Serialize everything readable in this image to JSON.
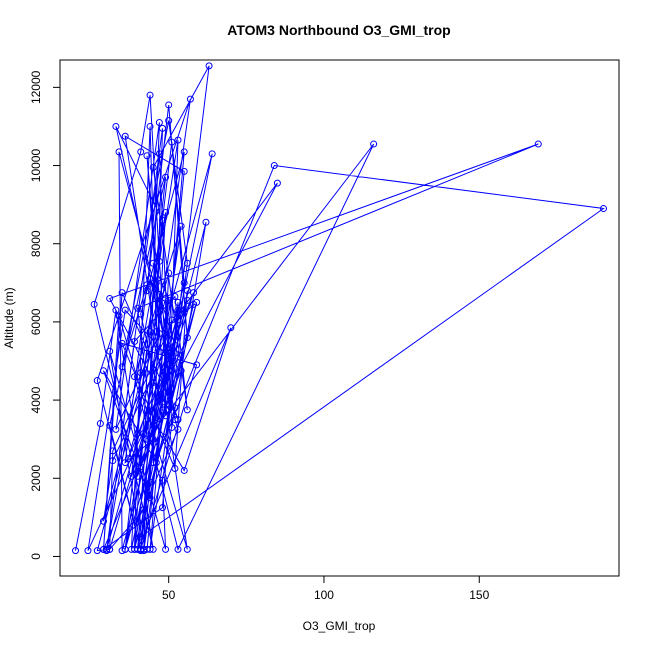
{
  "chart_data": {
    "type": "line",
    "title": "ATOM3 Northbound O3_GMI_trop",
    "xlabel": "O3_GMI_trop",
    "ylabel": "Altitude (m)",
    "xlim": [
      15,
      195
    ],
    "ylim": [
      -500,
      12700
    ],
    "xticks": [
      50,
      100,
      150
    ],
    "yticks": [
      0,
      2000,
      4000,
      6000,
      8000,
      10000,
      12000
    ],
    "series_color": "#0000ff",
    "marker": "open-circle",
    "grid": false,
    "legend": "none",
    "series": [
      {
        "x": [
          20,
          28,
          33,
          45,
          26,
          41,
          44,
          47,
          50,
          42,
          31,
          27,
          49,
          49,
          43,
          50,
          53,
          48,
          29,
          35,
          53,
          44,
          39,
          40,
          44,
          46,
          48,
          30,
          39,
          52,
          56,
          45,
          63,
          52,
          47,
          45,
          44,
          51,
          33,
          48,
          40,
          58,
          53,
          45,
          51,
          44,
          29,
          46,
          52,
          48,
          49,
          31,
          40,
          53,
          52,
          47,
          34,
          35,
          62,
          51,
          47,
          43,
          50,
          56,
          24,
          36,
          54,
          41,
          42,
          52,
          40,
          57,
          27,
          41,
          59,
          35,
          52,
          56,
          44,
          55,
          41,
          48,
          29,
          34,
          56,
          36,
          55,
          43,
          42,
          47,
          33,
          47,
          36,
          49,
          31,
          41,
          50,
          45,
          41,
          46,
          55,
          70,
          40,
          51,
          30,
          49,
          44,
          42,
          53,
          32,
          31,
          53,
          85,
          48,
          50,
          29,
          32,
          56,
          38,
          51,
          55,
          36,
          59,
          39,
          54,
          39,
          53,
          116,
          43,
          58,
          37,
          64,
          38,
          41,
          46,
          53,
          50,
          31,
          169,
          40,
          45,
          36,
          43,
          35,
          50,
          56,
          49,
          84,
          190,
          41
        ],
        "y": [
          150,
          3400,
          6300,
          180,
          6450,
          10350,
          11800,
          7550,
          4200,
          1200,
          180,
          150,
          6600,
          3600,
          10250,
          3900,
          6500,
          1250,
          180,
          6750,
          3500,
          5750,
          180,
          3150,
          11000,
          5750,
          10950,
          150,
          5500,
          6650,
          3750,
          9950,
          12550,
          5400,
          6700,
          2400,
          7100,
          4750,
          11000,
          8600,
          180,
          6450,
          6050,
          7500,
          5050,
          1500,
          4750,
          2400,
          3800,
          1950,
          180,
          5250,
          900,
          3250,
          3500,
          6450,
          10350,
          150,
          8550,
          3300,
          10300,
          6800,
          11550,
          5600,
          150,
          6300,
          4750,
          2300,
          3150,
          5200,
          2050,
          11700,
          4500,
          180,
          4900,
          5450,
          2250,
          6800,
          180,
          10350,
          6200,
          3750,
          180,
          6150,
          180,
          10750,
          9850,
          180,
          180,
          11100,
          3250,
          5700,
          180,
          9700,
          3350,
          180,
          6550,
          4450,
          150,
          3400,
          2200,
          5850,
          180,
          6050,
          180,
          8800,
          1900,
          150,
          6300,
          2700,
          180,
          6200,
          9550,
          3950,
          7250,
          900,
          2450,
          6550,
          2050,
          10600,
          7000,
          180,
          6500,
          180,
          8450,
          4600,
          180,
          10550,
          3000,
          6750,
          2500,
          10300,
          180,
          4700,
          7000,
          10650,
          3750,
          6600,
          10550,
          6350,
          3000,
          2400,
          6950,
          4850,
          11150,
          7500,
          3050,
          10000,
          8900,
          500
        ]
      }
    ]
  }
}
